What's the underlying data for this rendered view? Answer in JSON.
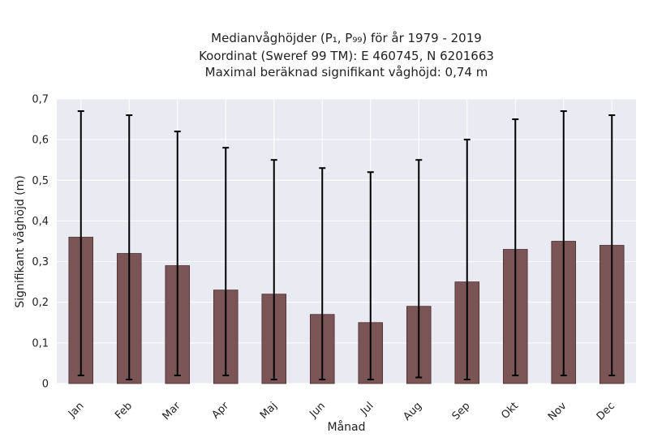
{
  "chart_data": {
    "type": "bar",
    "title_lines": [
      "Medianvåghöjder (P₁, P₉₉) för år 1979 - 2019",
      "Koordinat (Sweref 99 TM): E 460745, N 6201663",
      "Maximal beräknad signifikant våghöjd: 0,74 m"
    ],
    "xlabel": "Månad",
    "ylabel": "Signifikant våghöjd (m)",
    "categories": [
      "Jan",
      "Feb",
      "Mar",
      "Apr",
      "Maj",
      "Jun",
      "Jul",
      "Aug",
      "Sep",
      "Okt",
      "Nov",
      "Dec"
    ],
    "values": [
      0.36,
      0.32,
      0.29,
      0.23,
      0.22,
      0.17,
      0.15,
      0.19,
      0.25,
      0.33,
      0.35,
      0.34
    ],
    "p1": [
      0.02,
      0.01,
      0.02,
      0.02,
      0.01,
      0.01,
      0.01,
      0.015,
      0.01,
      0.02,
      0.02,
      0.02
    ],
    "p99": [
      0.67,
      0.66,
      0.62,
      0.58,
      0.55,
      0.53,
      0.52,
      0.55,
      0.6,
      0.65,
      0.67,
      0.66
    ],
    "ylim": [
      0,
      0.7
    ],
    "yticks": [
      0,
      0.1,
      0.2,
      0.3,
      0.4,
      0.5,
      0.6,
      0.7
    ],
    "ytick_labels": [
      "0",
      "0,1",
      "0,2",
      "0,3",
      "0,4",
      "0,5",
      "0,6",
      "0,7"
    ],
    "grid": true,
    "colors": {
      "bar": "#7b5555",
      "bar_edge": "#4a3030",
      "plot_bg": "#eaeaf2",
      "grid": "#ffffff",
      "errorbar": "#000000"
    }
  }
}
